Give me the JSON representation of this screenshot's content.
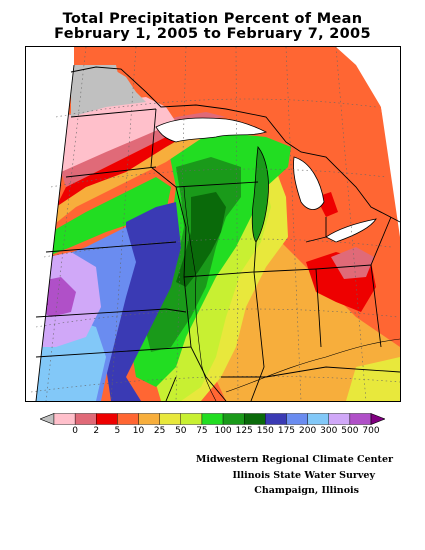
{
  "title": {
    "line1": "Total Precipitation Percent of Mean",
    "line2": "February 1, 2005 to February 7, 2005"
  },
  "legend": {
    "labels": [
      "0",
      "2",
      "5",
      "10",
      "25",
      "50",
      "75",
      "100",
      "125",
      "150",
      "175",
      "200",
      "300",
      "500",
      "700"
    ],
    "colors": [
      "#c0c0c0",
      "#ffc0cb",
      "#e06a78",
      "#ee0000",
      "#ff6633",
      "#f7ae3c",
      "#e8e83c",
      "#c8f032",
      "#22dd22",
      "#1a9a1a",
      "#0a6a0a",
      "#3a3ab4",
      "#6a8cf0",
      "#82c8f8",
      "#d0a8f8",
      "#b050c8",
      "#800080"
    ]
  },
  "credits": {
    "line1": "Midwestern Regional Climate Center",
    "line2": "Illinois State Water Survey",
    "line3": "Champaign, Illinois"
  }
}
